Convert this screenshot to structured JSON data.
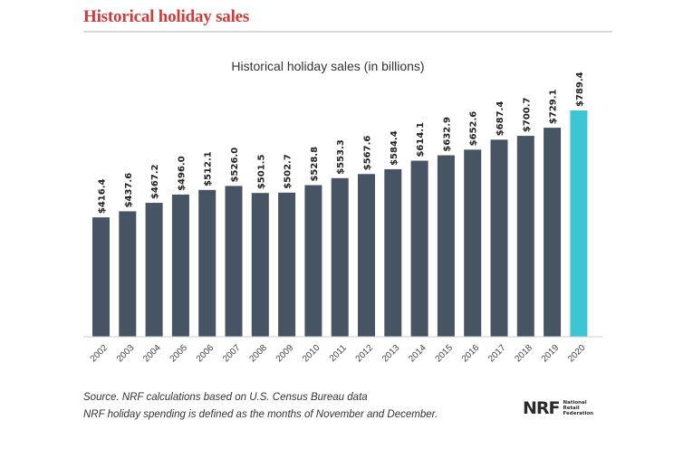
{
  "header": {
    "title": "Historical holiday sales"
  },
  "chart_data": {
    "type": "bar",
    "title": "Historical holiday sales (in billions)",
    "xlabel": "",
    "ylabel": "",
    "ylim": [
      0,
      850
    ],
    "grid": false,
    "categories": [
      "2002",
      "2003",
      "2004",
      "2005",
      "2006",
      "2007",
      "2008",
      "2009",
      "2010",
      "2011",
      "2012",
      "2013",
      "2014",
      "2015",
      "2016",
      "2017",
      "2018",
      "2019",
      "2020"
    ],
    "values": [
      416.4,
      437.6,
      467.2,
      496.0,
      512.1,
      526.0,
      501.5,
      502.7,
      528.8,
      553.3,
      567.6,
      584.4,
      614.1,
      632.9,
      652.6,
      687.4,
      700.7,
      729.1,
      789.4
    ],
    "data_labels": [
      "$416.4",
      "$437.6",
      "$467.2",
      "$496.0",
      "$512.1",
      "$526.0",
      "$501.5",
      "$502.7",
      "$528.8",
      "$553.3",
      "$567.6",
      "$584.4",
      "$614.1",
      "$632.9",
      "$652.6",
      "$687.4",
      "$700.7",
      "$729.1",
      "$789.4"
    ],
    "colors": {
      "default": "#475464",
      "highlight": "#3cc5d2",
      "highlight_category": "2020"
    }
  },
  "footer": {
    "source_line_1": "Source. NRF calculations based on U.S. Census Bureau data",
    "source_line_2": "NRF holiday spending is defined as the months of November and December."
  },
  "logo": {
    "mark": "NRF",
    "text_lines": [
      "National",
      "Retail",
      "Federation"
    ]
  }
}
